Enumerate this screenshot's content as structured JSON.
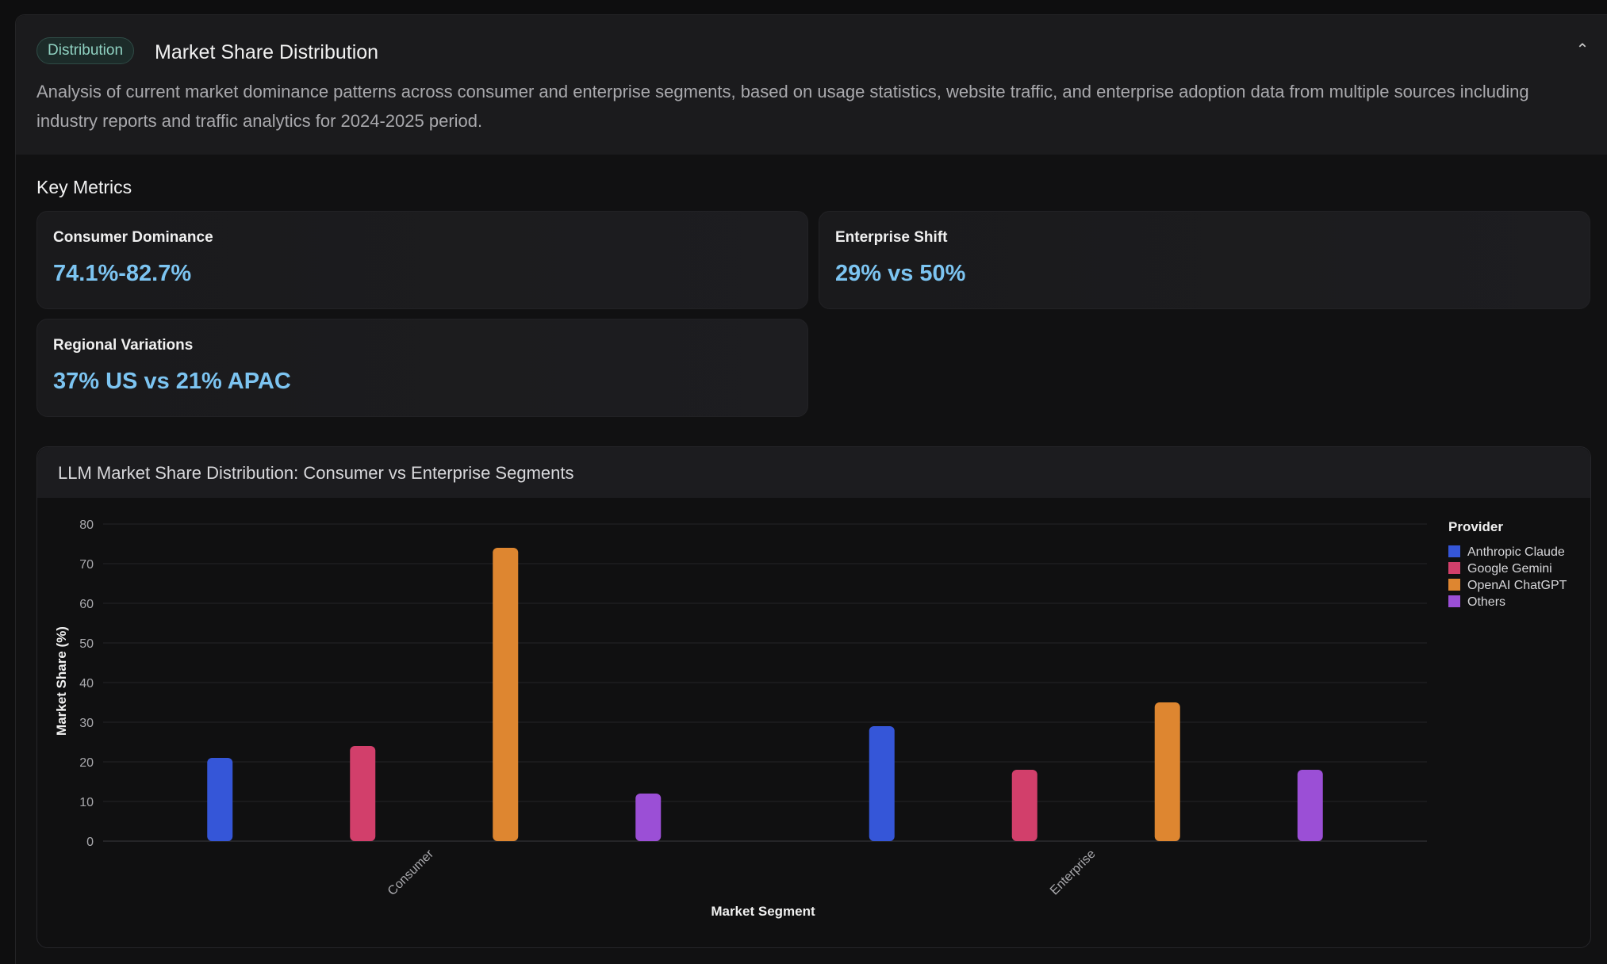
{
  "section": {
    "badge": "Distribution",
    "title": "Market Share Distribution",
    "collapse_icon": "chevron-up-icon",
    "description": "Analysis of current market dominance patterns across consumer and enterprise segments, based on usage statistics, website traffic, and enterprise adoption data from multiple sources including industry reports and traffic analytics for 2024-2025 period."
  },
  "key_metrics": {
    "heading": "Key Metrics",
    "cards": [
      {
        "label": "Consumer Dominance",
        "value": "74.1%-82.7%"
      },
      {
        "label": "Enterprise Shift",
        "value": "29% vs 50%"
      },
      {
        "label": "Regional Variations",
        "value": "37% US vs 21% APAC"
      }
    ]
  },
  "colors": {
    "accent_value": "#7cc4f1",
    "badge_text": "#8fd1c1"
  },
  "chart_data": {
    "type": "bar",
    "title": "LLM Market Share Distribution: Consumer vs Enterprise Segments",
    "xlabel": "Market Segment",
    "ylabel": "Market Share (%)",
    "ylim": [
      0,
      80
    ],
    "yticks": [
      0,
      10,
      20,
      30,
      40,
      50,
      60,
      70,
      80
    ],
    "grid": true,
    "legend_title": "Provider",
    "legend_position": "top-right",
    "categories": [
      "Consumer",
      "Enterprise"
    ],
    "series": [
      {
        "name": "Anthropic Claude",
        "color": "#3556d8",
        "values": [
          21,
          29
        ]
      },
      {
        "name": "Google Gemini",
        "color": "#d23f6b",
        "values": [
          24,
          18
        ]
      },
      {
        "name": "OpenAI ChatGPT",
        "color": "#de8630",
        "values": [
          74,
          35
        ]
      },
      {
        "name": "Others",
        "color": "#9b4fd6",
        "values": [
          12,
          18
        ]
      }
    ]
  }
}
